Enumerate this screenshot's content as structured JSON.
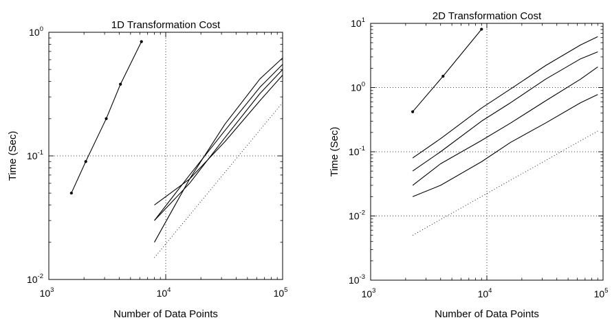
{
  "chart_data": [
    {
      "type": "line",
      "title": "1D Transformation Cost",
      "xlabel": "Number of Data Points",
      "ylabel": "Time (Sec)",
      "xscale": "log",
      "yscale": "log",
      "xlim": [
        1000,
        100000
      ],
      "ylim": [
        0.01,
        1
      ],
      "grid": "dotted at decades",
      "x_ticks": [
        {
          "base": "10",
          "exp": "3",
          "value": 1000
        },
        {
          "base": "10",
          "exp": "4",
          "value": 10000
        },
        {
          "base": "10",
          "exp": "5",
          "value": 100000
        }
      ],
      "y_ticks": [
        {
          "base": "10",
          "exp": "-2",
          "value": 0.01
        },
        {
          "base": "10",
          "exp": "-1",
          "value": 0.1
        },
        {
          "base": "10",
          "exp": "0",
          "value": 1
        }
      ],
      "series": [
        {
          "style": "solid-dots",
          "points": [
            [
              1560,
              0.05
            ],
            [
              2070,
              0.09
            ],
            [
              3100,
              0.2
            ],
            [
              4100,
              0.38
            ],
            [
              6200,
              0.84
            ]
          ]
        },
        {
          "style": "solid",
          "points": [
            [
              8000,
              0.04
            ],
            [
              16000,
              0.065
            ],
            [
              32000,
              0.18
            ],
            [
              64000,
              0.42
            ],
            [
              100000,
              0.62
            ]
          ]
        },
        {
          "style": "solid",
          "points": [
            [
              8000,
              0.03
            ],
            [
              16000,
              0.07
            ],
            [
              32000,
              0.16
            ],
            [
              64000,
              0.36
            ],
            [
              100000,
              0.55
            ]
          ]
        },
        {
          "style": "solid",
          "points": [
            [
              8000,
              0.03
            ],
            [
              16000,
              0.06
            ],
            [
              32000,
              0.14
            ],
            [
              64000,
              0.32
            ],
            [
              100000,
              0.5
            ]
          ]
        },
        {
          "style": "solid",
          "points": [
            [
              8000,
              0.02
            ],
            [
              16000,
              0.065
            ],
            [
              32000,
              0.13
            ],
            [
              64000,
              0.28
            ],
            [
              100000,
              0.45
            ]
          ]
        },
        {
          "style": "dotted",
          "points": [
            [
              8000,
              0.015
            ],
            [
              100000,
              0.27
            ]
          ]
        }
      ]
    },
    {
      "type": "line",
      "title": "2D Transformation Cost",
      "xlabel": "Number of Data Points",
      "ylabel": "Time (Sec)",
      "xscale": "log",
      "yscale": "log",
      "xlim": [
        1000,
        100000
      ],
      "ylim": [
        0.001,
        10
      ],
      "grid": "dotted at decades",
      "x_ticks": [
        {
          "base": "10",
          "exp": "3",
          "value": 1000
        },
        {
          "base": "10",
          "exp": "4",
          "value": 10000
        },
        {
          "base": "10",
          "exp": "5",
          "value": 100000
        }
      ],
      "y_ticks": [
        {
          "base": "10",
          "exp": "-3",
          "value": 0.001
        },
        {
          "base": "10",
          "exp": "-2",
          "value": 0.01
        },
        {
          "base": "10",
          "exp": "-1",
          "value": 0.1
        },
        {
          "base": "10",
          "exp": "0",
          "value": 1
        },
        {
          "base": "10",
          "exp": "1",
          "value": 10
        }
      ],
      "series": [
        {
          "style": "solid-dots",
          "points": [
            [
              2300,
              0.42
            ],
            [
              4200,
              1.5
            ],
            [
              9000,
              8.1
            ]
          ]
        },
        {
          "style": "solid",
          "points": [
            [
              2300,
              0.08
            ],
            [
              4000,
              0.16
            ],
            [
              9000,
              0.48
            ],
            [
              16000,
              0.95
            ],
            [
              32000,
              2.2
            ],
            [
              64000,
              4.6
            ],
            [
              90000,
              6.2
            ]
          ]
        },
        {
          "style": "solid",
          "points": [
            [
              2300,
              0.05
            ],
            [
              4000,
              0.1
            ],
            [
              9000,
              0.3
            ],
            [
              16000,
              0.58
            ],
            [
              32000,
              1.35
            ],
            [
              64000,
              2.8
            ],
            [
              90000,
              3.6
            ]
          ]
        },
        {
          "style": "solid",
          "points": [
            [
              2300,
              0.03
            ],
            [
              4000,
              0.065
            ],
            [
              9000,
              0.15
            ],
            [
              16000,
              0.28
            ],
            [
              32000,
              0.62
            ],
            [
              64000,
              1.35
            ],
            [
              90000,
              2.1
            ]
          ]
        },
        {
          "style": "solid",
          "points": [
            [
              2300,
              0.02
            ],
            [
              4000,
              0.03
            ],
            [
              9000,
              0.07
            ],
            [
              16000,
              0.14
            ],
            [
              32000,
              0.28
            ],
            [
              64000,
              0.58
            ],
            [
              90000,
              0.78
            ]
          ]
        },
        {
          "style": "dotted",
          "points": [
            [
              2300,
              0.005
            ],
            [
              90000,
              0.21
            ]
          ]
        }
      ]
    }
  ]
}
